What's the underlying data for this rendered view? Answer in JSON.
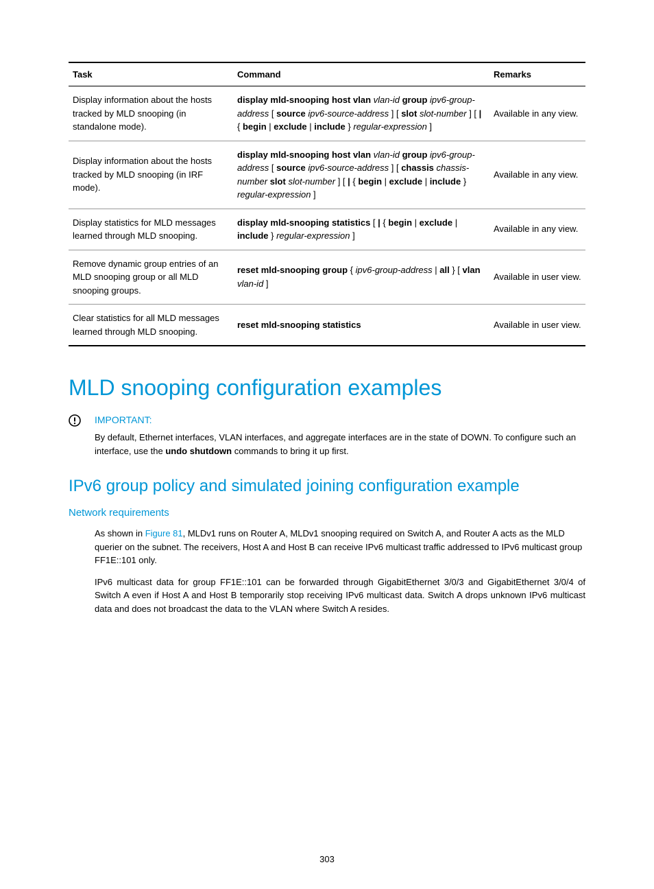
{
  "table": {
    "headers": {
      "task": "Task",
      "command": "Command",
      "remarks": "Remarks"
    },
    "rows": [
      {
        "task": "Display information about the hosts tracked by MLD snooping (in standalone mode).",
        "command": "<span class=\"b\">display mld-snooping host vlan</span> <span class=\"i\">vlan-id</span> <span class=\"b\">group</span> <span class=\"i\">ipv6-group-address</span> [ <span class=\"b\">source</span> <span class=\"i\">ipv6-source-address</span> ] [ <span class=\"b\">slot</span> <span class=\"i\">slot-number</span> ] [ <span class=\"b\">|</span> { <span class=\"b\">begin</span> | <span class=\"b\">exclude</span> | <span class=\"b\">include</span> } <span class=\"i\">regular-expression</span> ]",
        "remarks": "Available in any view."
      },
      {
        "task": "Display information about the hosts tracked by MLD snooping (in IRF mode).",
        "command": "<span class=\"b\">display mld-snooping host vlan</span> <span class=\"i\">vlan-id</span> <span class=\"b\">group</span> <span class=\"i\">ipv6-group-address</span> [ <span class=\"b\">source</span> <span class=\"i\">ipv6-source-address</span> ] [ <span class=\"b\">chassis</span> <span class=\"i\">chassis-number</span> <span class=\"b\">slot</span> <span class=\"i\">slot-number</span> ] [ <span class=\"b\">|</span> { <span class=\"b\">begin</span> | <span class=\"b\">exclude</span> | <span class=\"b\">include</span> } <span class=\"i\">regular-expression</span> ]",
        "remarks": "Available in any view."
      },
      {
        "task": "Display statistics for MLD messages learned through MLD snooping.",
        "command": "<span class=\"b\">display mld-snooping statistics</span> [ <span class=\"b\">|</span> { <span class=\"b\">begin</span> | <span class=\"b\">exclude</span> | <span class=\"b\">include</span> } <span class=\"i\">regular-expression</span> ]",
        "remarks": "Available in any view."
      },
      {
        "task": "Remove dynamic group entries of an MLD snooping group or all MLD snooping groups.",
        "command": "<span class=\"b\">reset mld-snooping group</span> { <span class=\"i\">ipv6-group-address</span> | <span class=\"b\">all</span> } [ <span class=\"b\">vlan</span> <span class=\"i\">vlan-id</span> ]",
        "remarks": "Available in user view."
      },
      {
        "task": "Clear statistics for all MLD messages learned through MLD snooping.",
        "command": "<span class=\"b\">reset mld-snooping statistics</span>",
        "remarks": "Available in user view."
      }
    ]
  },
  "h1": "MLD snooping configuration examples",
  "important": {
    "label": "IMPORTANT:",
    "text": "By default, Ethernet interfaces, VLAN interfaces, and aggregate interfaces are in the state of DOWN. To configure such an interface, use the <span class=\"b\">undo shutdown</span> commands to bring it up first."
  },
  "h2": "IPv6 group policy and simulated joining configuration example",
  "h3": "Network requirements",
  "p1": "As shown in <span class=\"link\">Figure 81</span>, MLDv1 runs on Router A, MLDv1 snooping required on Switch A, and Router A acts as the MLD querier on the subnet. The receivers, Host A and Host B can receive IPv6 multicast traffic addressed to IPv6 multicast group FF1E::101 only.",
  "p2": "IPv6 multicast data for group FF1E::101 can be forwarded through GigabitEthernet 3/0/3 and GigabitEthernet 3/0/4 of Switch A even if Host A and Host B temporarily stop receiving IPv6 multicast data. Switch A drops unknown IPv6 multicast data and does not broadcast the data to the VLAN where Switch A resides.",
  "pagenum": "303",
  "colors": {
    "accent": "#0096d6"
  }
}
